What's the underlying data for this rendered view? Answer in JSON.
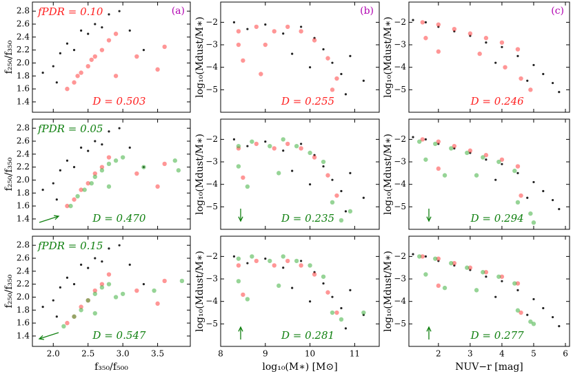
{
  "chart_data": [
    {
      "type": "scatter",
      "fpdr": "fPDR = 0.10",
      "d_label": "D = 0.503",
      "panel": "(a)",
      "label_color": "#ff2020",
      "panel_color": "#b000b0",
      "ylabel": "f₂₅₀/f₃₅₀",
      "xlim": [
        1.7,
        3.97
      ],
      "xticks": [
        {
          "value": 2,
          "label": "2.0"
        },
        2.5,
        {
          "value": 3,
          "label": "3.0"
        },
        3.5
      ],
      "ylim": [
        1.24,
        2.94
      ],
      "yticks": [
        1.4,
        1.6,
        1.8,
        {
          "value": 2,
          "label": "2.0"
        },
        2.2,
        2.4,
        2.6,
        2.8
      ],
      "series": [
        {
          "color": "#222222",
          "x": [
            1.85,
            2.0,
            2.1,
            2.2,
            2.3,
            2.4,
            2.5,
            2.6,
            2.7,
            2.8,
            2.95,
            3.1,
            3.3,
            2.05
          ],
          "y": [
            1.85,
            1.95,
            2.15,
            2.3,
            2.2,
            2.5,
            2.45,
            2.6,
            2.55,
            2.75,
            2.8,
            2.5,
            2.2,
            1.7
          ]
        },
        {
          "color": "#ff4040",
          "x": [
            2.2,
            2.3,
            2.35,
            2.4,
            2.5,
            2.55,
            2.6,
            2.7,
            2.8,
            2.9,
            3.2,
            3.6,
            3.5,
            2.9
          ],
          "y": [
            1.6,
            1.7,
            1.8,
            1.85,
            1.95,
            2.05,
            2.1,
            2.2,
            2.35,
            2.45,
            2.1,
            2.25,
            1.9,
            1.8
          ]
        }
      ]
    },
    {
      "type": "scatter",
      "d_label": "D = 0.255",
      "panel": "(b)",
      "label_color": "#ff2020",
      "panel_color": "#b000b0",
      "ylabel": "log₁₀(Mdust/M∗)",
      "xlim": [
        8,
        11.55
      ],
      "xticks": [
        8,
        9,
        10,
        11
      ],
      "ylim": [
        -6.0,
        -1.1
      ],
      "yticks": [
        {
          "value": -2,
          "label": "−2"
        },
        {
          "value": -3,
          "label": "−3"
        },
        {
          "value": -4,
          "label": "−4"
        },
        {
          "value": -5,
          "label": "−5"
        }
      ],
      "series": [
        {
          "color": "#222222",
          "x": [
            8.3,
            8.6,
            9.0,
            9.4,
            9.8,
            10.1,
            10.3,
            10.5,
            10.7,
            10.9,
            11.2,
            10.0,
            9.6,
            10.8
          ],
          "y": [
            -2.0,
            -2.3,
            -2.1,
            -2.5,
            -2.2,
            -2.7,
            -3.2,
            -3.8,
            -4.3,
            -3.5,
            -4.6,
            -4.0,
            -3.4,
            -5.2
          ]
        },
        {
          "color": "#ff4040",
          "x": [
            8.4,
            8.8,
            9.2,
            9.5,
            9.8,
            10.1,
            8.4,
            8.5,
            10.4,
            10.6,
            10.5,
            9.0,
            8.9
          ],
          "y": [
            -2.4,
            -2.2,
            -2.4,
            -2.2,
            -2.4,
            -2.8,
            -3.0,
            -3.7,
            -3.6,
            -4.5,
            -5.0,
            -3.0,
            -4.3
          ]
        }
      ]
    },
    {
      "type": "scatter",
      "d_label": "D = 0.246",
      "panel": "(c)",
      "label_color": "#ff2020",
      "panel_color": "#b000b0",
      "ylabel": "log₁₀(Mdust/M∗)",
      "xlim": [
        1.07,
        6.13
      ],
      "xticks": [
        2,
        3,
        4,
        5,
        6
      ],
      "ylim": [
        -6.0,
        -1.1
      ],
      "yticks": [
        {
          "value": -2,
          "label": "−2"
        },
        {
          "value": -3,
          "label": "−3"
        },
        {
          "value": -4,
          "label": "−4"
        },
        {
          "value": -5,
          "label": "−5"
        }
      ],
      "series": [
        {
          "color": "#222222",
          "x": [
            1.2,
            1.6,
            2.0,
            2.5,
            3.0,
            3.5,
            4.0,
            4.5,
            5.0,
            5.3,
            5.6,
            5.8,
            4.8,
            3.8
          ],
          "y": [
            -1.9,
            -2.0,
            -2.2,
            -2.4,
            -2.6,
            -2.9,
            -3.1,
            -3.5,
            -3.9,
            -4.3,
            -4.7,
            -5.1,
            -4.6,
            -3.8
          ]
        },
        {
          "color": "#ff4040",
          "x": [
            1.5,
            2.0,
            2.5,
            3.0,
            3.5,
            4.0,
            4.5,
            1.6,
            2.0,
            3.3,
            4.6,
            4.9,
            4.1
          ],
          "y": [
            -2.0,
            -2.1,
            -2.3,
            -2.5,
            -2.7,
            -2.9,
            -3.2,
            -2.7,
            -3.3,
            -3.4,
            -4.5,
            -5.0,
            -4.0
          ]
        }
      ]
    },
    {
      "type": "scatter",
      "fpdr": "fPDR = 0.05",
      "d_label": "D = 0.470",
      "label_color": "#108010",
      "ylabel": "f₂₅₀/f₃₅₀",
      "xlim": [
        1.7,
        3.97
      ],
      "xticks": [
        {
          "value": 2,
          "label": "2.0"
        },
        2.5,
        {
          "value": 3,
          "label": "3.0"
        },
        3.5
      ],
      "ylim": [
        1.24,
        2.94
      ],
      "yticks": [
        1.4,
        1.6,
        1.8,
        {
          "value": 2,
          "label": "2.0"
        },
        2.2,
        2.4,
        2.6,
        2.8
      ],
      "series": [
        {
          "color": "#222222",
          "x": [
            1.85,
            2.0,
            2.1,
            2.2,
            2.3,
            2.4,
            2.5,
            2.6,
            2.7,
            2.8,
            2.95,
            3.1,
            3.3,
            2.05
          ],
          "y": [
            1.85,
            1.95,
            2.15,
            2.3,
            2.2,
            2.5,
            2.45,
            2.6,
            2.55,
            2.75,
            2.8,
            2.5,
            2.2,
            1.7
          ]
        },
        {
          "color": "#ff4040",
          "x": [
            2.2,
            2.3,
            2.4,
            2.5,
            2.6,
            2.7,
            2.8,
            3.2,
            3.6,
            3.5
          ],
          "y": [
            1.6,
            1.7,
            1.85,
            1.95,
            2.1,
            2.2,
            2.35,
            2.1,
            2.25,
            1.9
          ]
        },
        {
          "color": "#40b040",
          "x": [
            2.25,
            2.35,
            2.45,
            2.55,
            2.6,
            2.7,
            2.8,
            2.9,
            3.0,
            3.3,
            3.75,
            3.8,
            2.8
          ],
          "y": [
            1.6,
            1.75,
            1.85,
            1.95,
            2.05,
            2.15,
            2.25,
            2.3,
            2.35,
            2.2,
            2.3,
            2.15,
            1.9
          ]
        }
      ]
    },
    {
      "type": "scatter",
      "d_label": "D = 0.235",
      "label_color": "#108010",
      "ylabel": "log₁₀(Mdust/M∗)",
      "xlim": [
        8,
        11.55
      ],
      "xticks": [
        8,
        9,
        10,
        11
      ],
      "ylim": [
        -6.0,
        -1.1
      ],
      "yticks": [
        {
          "value": -2,
          "label": "−2"
        },
        {
          "value": -3,
          "label": "−3"
        },
        {
          "value": -4,
          "label": "−4"
        },
        {
          "value": -5,
          "label": "−5"
        }
      ],
      "series": [
        {
          "color": "#222222",
          "x": [
            8.3,
            8.6,
            9.0,
            9.4,
            9.8,
            10.1,
            10.3,
            10.5,
            10.7,
            10.9,
            11.2,
            10.0,
            9.6,
            10.8
          ],
          "y": [
            -2.0,
            -2.3,
            -2.1,
            -2.5,
            -2.2,
            -2.7,
            -3.2,
            -3.8,
            -4.3,
            -3.5,
            -4.6,
            -4.0,
            -3.4,
            -5.2
          ]
        },
        {
          "color": "#ff4040",
          "x": [
            8.4,
            8.8,
            9.2,
            9.5,
            9.8,
            10.1,
            8.5,
            10.4,
            10.6
          ],
          "y": [
            -2.4,
            -2.2,
            -2.4,
            -2.2,
            -2.4,
            -2.8,
            -3.7,
            -3.6,
            -4.5
          ]
        },
        {
          "color": "#40b040",
          "x": [
            8.4,
            8.7,
            9.1,
            9.4,
            9.7,
            10.0,
            10.3,
            8.4,
            8.6,
            9.3,
            10.5,
            10.7,
            10.9
          ],
          "y": [
            -2.3,
            -2.1,
            -2.3,
            -2.0,
            -2.3,
            -2.6,
            -3.0,
            -3.2,
            -4.1,
            -3.5,
            -4.8,
            -5.6,
            -5.2
          ]
        }
      ]
    },
    {
      "type": "scatter",
      "d_label": "D = 0.294",
      "label_color": "#108010",
      "ylabel": "log₁₀(Mdust/M∗)",
      "xlim": [
        1.07,
        6.13
      ],
      "xticks": [
        2,
        3,
        4,
        5,
        6
      ],
      "ylim": [
        -6.0,
        -1.1
      ],
      "yticks": [
        {
          "value": -2,
          "label": "−2"
        },
        {
          "value": -3,
          "label": "−3"
        },
        {
          "value": -4,
          "label": "−4"
        },
        {
          "value": -5,
          "label": "−5"
        }
      ],
      "series": [
        {
          "color": "#222222",
          "x": [
            1.2,
            1.6,
            2.0,
            2.5,
            3.0,
            3.5,
            4.0,
            4.5,
            5.0,
            5.3,
            5.6,
            5.8,
            4.8,
            3.8
          ],
          "y": [
            -1.9,
            -2.0,
            -2.2,
            -2.4,
            -2.6,
            -2.9,
            -3.1,
            -3.5,
            -3.9,
            -4.3,
            -4.7,
            -5.1,
            -4.6,
            -3.8
          ]
        },
        {
          "color": "#ff4040",
          "x": [
            1.5,
            2.0,
            2.5,
            3.0,
            3.5,
            4.0,
            4.5,
            2.0,
            4.6
          ],
          "y": [
            -2.0,
            -2.1,
            -2.3,
            -2.5,
            -2.7,
            -2.9,
            -3.2,
            -3.3,
            -4.5
          ]
        },
        {
          "color": "#40b040",
          "x": [
            1.4,
            1.9,
            2.4,
            2.9,
            3.4,
            3.9,
            4.4,
            1.6,
            2.2,
            3.2,
            4.5,
            4.9,
            5.0
          ],
          "y": [
            -2.1,
            -2.2,
            -2.4,
            -2.6,
            -2.8,
            -3.0,
            -3.4,
            -2.9,
            -3.6,
            -3.6,
            -4.8,
            -5.3,
            -5.7
          ]
        }
      ]
    },
    {
      "type": "scatter",
      "fpdr": "fPDR = 0.15",
      "d_label": "D = 0.547",
      "label_color": "#108010",
      "ylabel": "f₂₅₀/f₃₅₀",
      "xlabel": "f₃₅₀/f₅₀₀",
      "xlim": [
        1.7,
        3.97
      ],
      "xticks": [
        {
          "value": 2,
          "label": "2.0"
        },
        2.5,
        {
          "value": 3,
          "label": "3.0"
        },
        3.5
      ],
      "ylim": [
        1.24,
        2.94
      ],
      "yticks": [
        1.4,
        1.6,
        1.8,
        {
          "value": 2,
          "label": "2.0"
        },
        2.2,
        2.4,
        2.6,
        2.8
      ],
      "series": [
        {
          "color": "#222222",
          "x": [
            1.85,
            2.0,
            2.1,
            2.2,
            2.3,
            2.4,
            2.5,
            2.6,
            2.7,
            2.8,
            2.95,
            3.1,
            3.3,
            2.05
          ],
          "y": [
            1.85,
            1.95,
            2.15,
            2.3,
            2.2,
            2.5,
            2.45,
            2.6,
            2.55,
            2.75,
            2.8,
            2.5,
            2.2,
            1.7
          ]
        },
        {
          "color": "#ff4040",
          "x": [
            2.2,
            2.3,
            2.4,
            2.5,
            2.6,
            2.7,
            2.8,
            3.2,
            3.6,
            3.5
          ],
          "y": [
            1.6,
            1.7,
            1.85,
            1.95,
            2.1,
            2.2,
            2.35,
            2.1,
            2.25,
            1.9
          ]
        },
        {
          "color": "#40b040",
          "x": [
            2.15,
            2.3,
            2.4,
            2.5,
            2.6,
            2.7,
            2.8,
            2.9,
            3.0,
            3.45,
            3.85,
            2.6
          ],
          "y": [
            1.55,
            1.7,
            1.8,
            1.95,
            2.05,
            2.15,
            2.2,
            2.0,
            2.05,
            2.1,
            2.25,
            1.75
          ]
        }
      ]
    },
    {
      "type": "scatter",
      "d_label": "D = 0.281",
      "label_color": "#108010",
      "ylabel": "log₁₀(Mdust/M∗)",
      "xlabel": "log₁₀(M∗) [M⊙]",
      "xlim": [
        8,
        11.55
      ],
      "xticks": [
        8,
        9,
        10,
        11
      ],
      "ylim": [
        -6.0,
        -1.1
      ],
      "yticks": [
        {
          "value": -2,
          "label": "−2"
        },
        {
          "value": -3,
          "label": "−3"
        },
        {
          "value": -4,
          "label": "−4"
        },
        {
          "value": -5,
          "label": "−5"
        }
      ],
      "series": [
        {
          "color": "#222222",
          "x": [
            8.3,
            8.6,
            9.0,
            9.4,
            9.8,
            10.1,
            10.3,
            10.5,
            10.7,
            10.9,
            11.2,
            10.0,
            9.6,
            10.8
          ],
          "y": [
            -2.0,
            -2.3,
            -2.1,
            -2.5,
            -2.2,
            -2.7,
            -3.2,
            -3.8,
            -4.3,
            -3.5,
            -4.6,
            -4.0,
            -3.4,
            -5.2
          ]
        },
        {
          "color": "#ff4040",
          "x": [
            8.4,
            8.8,
            9.2,
            9.5,
            9.8,
            10.1,
            8.5,
            10.4,
            10.6
          ],
          "y": [
            -2.4,
            -2.2,
            -2.4,
            -2.2,
            -2.4,
            -2.8,
            -3.7,
            -3.6,
            -4.5
          ]
        },
        {
          "color": "#40b040",
          "x": [
            8.4,
            8.7,
            9.1,
            9.4,
            9.7,
            10.0,
            10.3,
            8.4,
            8.6,
            9.3,
            10.5,
            10.7,
            11.2
          ],
          "y": [
            -2.1,
            -2.0,
            -2.2,
            -2.0,
            -2.2,
            -2.4,
            -2.9,
            -3.1,
            -3.9,
            -3.3,
            -4.5,
            -4.8,
            -4.5
          ]
        }
      ]
    },
    {
      "type": "scatter",
      "d_label": "D = 0.277",
      "label_color": "#108010",
      "ylabel": "log₁₀(Mdust/M∗)",
      "xlabel": "NUV−r [mag]",
      "xlim": [
        1.07,
        6.13
      ],
      "xticks": [
        2,
        3,
        4,
        5,
        6
      ],
      "ylim": [
        -6.0,
        -1.1
      ],
      "yticks": [
        {
          "value": -2,
          "label": "−2"
        },
        {
          "value": -3,
          "label": "−3"
        },
        {
          "value": -4,
          "label": "−4"
        },
        {
          "value": -5,
          "label": "−5"
        }
      ],
      "series": [
        {
          "color": "#222222",
          "x": [
            1.2,
            1.6,
            2.0,
            2.5,
            3.0,
            3.5,
            4.0,
            4.5,
            5.0,
            5.3,
            5.6,
            5.8,
            4.8,
            3.8
          ],
          "y": [
            -1.9,
            -2.0,
            -2.2,
            -2.4,
            -2.6,
            -2.9,
            -3.1,
            -3.5,
            -3.9,
            -4.3,
            -4.7,
            -5.1,
            -4.6,
            -3.8
          ]
        },
        {
          "color": "#ff4040",
          "x": [
            1.5,
            2.0,
            2.5,
            3.0,
            3.5,
            4.0,
            4.5,
            2.0,
            4.6
          ],
          "y": [
            -2.0,
            -2.1,
            -2.3,
            -2.5,
            -2.7,
            -2.9,
            -3.2,
            -3.3,
            -4.5
          ]
        },
        {
          "color": "#40b040",
          "x": [
            1.4,
            1.9,
            2.4,
            2.9,
            3.4,
            3.9,
            4.4,
            1.6,
            2.2,
            3.2,
            4.5,
            4.9,
            5.0
          ],
          "y": [
            -2.0,
            -2.1,
            -2.3,
            -2.5,
            -2.7,
            -2.9,
            -3.2,
            -2.8,
            -3.4,
            -3.5,
            -4.4,
            -4.9,
            -5.0
          ]
        }
      ]
    }
  ]
}
